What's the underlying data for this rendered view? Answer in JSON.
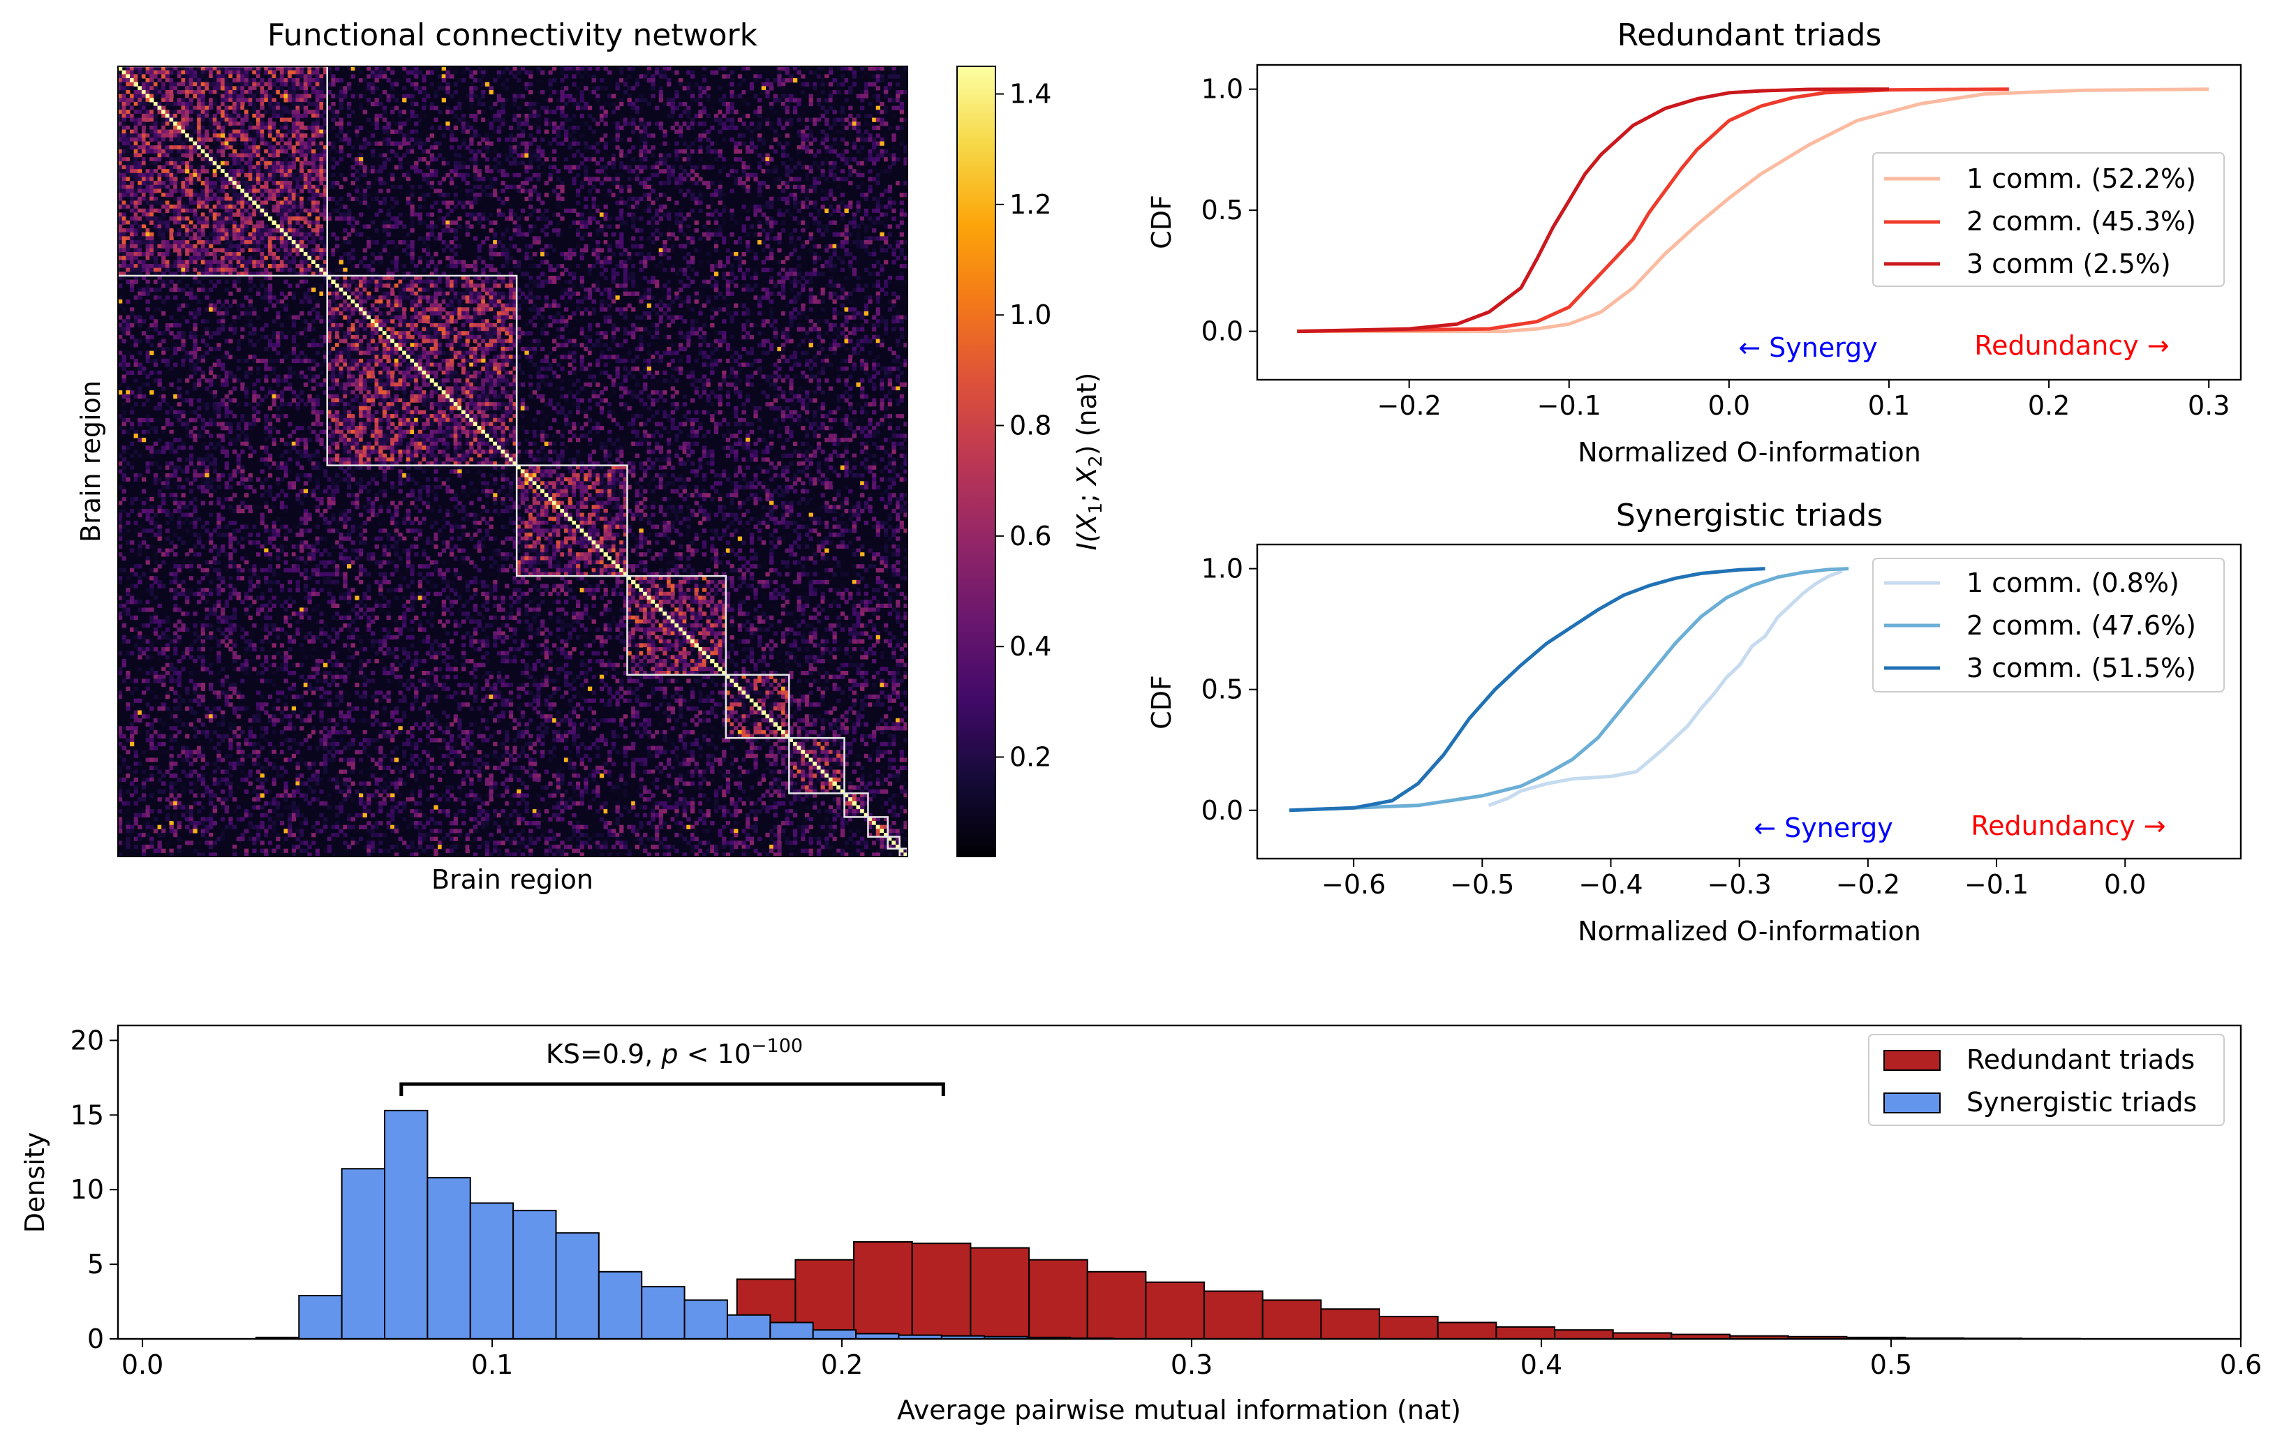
{
  "chart_data": [
    {
      "type": "heatmap",
      "title": "Functional connectivity network",
      "xlabel": "Brain region",
      "ylabel": "Brain region",
      "colorbar": {
        "label_prefix": "I(",
        "label_sub1": "X",
        "label_sub1_index": "1",
        "label_sep": "; ",
        "label_sub2": "X",
        "label_sub2_index": "2",
        "label_suffix": ") (nat)",
        "ticks": [
          0.2,
          0.4,
          0.6,
          0.8,
          1.0,
          1.2,
          1.4
        ],
        "tick_labels": [
          "0.2",
          "0.4",
          "0.6",
          "0.8",
          "1.0",
          "1.2",
          "1.4"
        ],
        "range": [
          0.02,
          1.45
        ],
        "colormap": "inferno"
      },
      "n_regions": 200,
      "communities": [
        53,
        48,
        28,
        25,
        16,
        14,
        6,
        5,
        3,
        2
      ],
      "grid": false
    },
    {
      "type": "line",
      "title": "Redundant triads",
      "xlabel": "Normalized O-information",
      "ylabel": "CDF",
      "xlim": [
        -0.295,
        0.32
      ],
      "ylim": [
        -0.2,
        1.1
      ],
      "xticks": [
        -0.2,
        -0.1,
        0.0,
        0.1,
        0.2,
        0.3
      ],
      "xtick_labels": [
        "−0.2",
        "−0.1",
        "0.0",
        "0.1",
        "0.2",
        "0.3"
      ],
      "yticks": [
        0.0,
        0.5,
        1.0
      ],
      "ytick_labels": [
        "0.0",
        "0.5",
        "1.0"
      ],
      "legend_position": "center-right",
      "series": [
        {
          "name": "1 comm. (52.2%)",
          "color": "#fcbba1",
          "x": [
            -0.27,
            -0.14,
            -0.12,
            -0.1,
            -0.08,
            -0.06,
            -0.04,
            -0.02,
            0.0,
            0.02,
            0.05,
            0.08,
            0.12,
            0.16,
            0.22,
            0.3
          ],
          "y": [
            0.0,
            0.0,
            0.01,
            0.03,
            0.08,
            0.18,
            0.32,
            0.44,
            0.55,
            0.65,
            0.77,
            0.87,
            0.94,
            0.98,
            0.995,
            1.0
          ]
        },
        {
          "name": "2 comm. (45.3%)",
          "color": "#ef3b2c",
          "x": [
            -0.27,
            -0.15,
            -0.12,
            -0.1,
            -0.08,
            -0.06,
            -0.05,
            -0.04,
            -0.03,
            -0.02,
            -0.01,
            0.0,
            0.02,
            0.04,
            0.06,
            0.1,
            0.175
          ],
          "y": [
            0.0,
            0.01,
            0.04,
            0.1,
            0.24,
            0.38,
            0.49,
            0.58,
            0.67,
            0.75,
            0.81,
            0.87,
            0.93,
            0.965,
            0.985,
            0.997,
            1.0
          ]
        },
        {
          "name": "3 comm (2.5%)",
          "color": "#cb181d",
          "x": [
            -0.27,
            -0.2,
            -0.17,
            -0.15,
            -0.13,
            -0.12,
            -0.11,
            -0.1,
            -0.09,
            -0.08,
            -0.06,
            -0.04,
            -0.02,
            0.0,
            0.02,
            0.05,
            0.1
          ],
          "y": [
            0.0,
            0.01,
            0.03,
            0.08,
            0.18,
            0.3,
            0.43,
            0.54,
            0.65,
            0.73,
            0.85,
            0.92,
            0.96,
            0.985,
            0.993,
            0.999,
            1.0
          ]
        }
      ],
      "annotations": [
        {
          "text": "← Synergy",
          "color": "#0000ff"
        },
        {
          "text": "Redundancy →",
          "color": "#ff0000"
        }
      ]
    },
    {
      "type": "line",
      "title": "Synergistic triads",
      "xlabel": "Normalized O-information",
      "ylabel": "CDF",
      "xlim": [
        -0.675,
        0.09
      ],
      "ylim": [
        -0.2,
        1.1
      ],
      "xticks": [
        -0.6,
        -0.5,
        -0.4,
        -0.3,
        -0.2,
        -0.1,
        0.0
      ],
      "xtick_labels": [
        "−0.6",
        "−0.5",
        "−0.4",
        "−0.3",
        "−0.2",
        "−0.1",
        "0.0"
      ],
      "yticks": [
        0.0,
        0.5,
        1.0
      ],
      "ytick_labels": [
        "0.0",
        "0.5",
        "1.0"
      ],
      "legend_position": "upper-right",
      "series": [
        {
          "name": "1 comm. (0.8%)",
          "color": "#c6dbef",
          "x": [
            -0.495,
            -0.48,
            -0.47,
            -0.45,
            -0.43,
            -0.4,
            -0.38,
            -0.36,
            -0.35,
            -0.34,
            -0.33,
            -0.32,
            -0.31,
            -0.3,
            -0.29,
            -0.28,
            -0.27,
            -0.26,
            -0.25,
            -0.24,
            -0.23,
            -0.22
          ],
          "y": [
            0.02,
            0.05,
            0.08,
            0.11,
            0.13,
            0.14,
            0.16,
            0.25,
            0.3,
            0.35,
            0.42,
            0.48,
            0.55,
            0.6,
            0.68,
            0.72,
            0.8,
            0.85,
            0.9,
            0.94,
            0.97,
            0.99
          ]
        },
        {
          "name": "2 comm. (47.6%)",
          "color": "#6baed6",
          "x": [
            -0.65,
            -0.55,
            -0.5,
            -0.47,
            -0.45,
            -0.43,
            -0.41,
            -0.39,
            -0.37,
            -0.35,
            -0.33,
            -0.31,
            -0.29,
            -0.27,
            -0.25,
            -0.23,
            -0.215
          ],
          "y": [
            0.0,
            0.02,
            0.06,
            0.1,
            0.15,
            0.21,
            0.3,
            0.43,
            0.56,
            0.69,
            0.8,
            0.88,
            0.93,
            0.965,
            0.985,
            0.997,
            1.0
          ]
        },
        {
          "name": "3 comm. (51.5%)",
          "color": "#2171b5",
          "x": [
            -0.65,
            -0.6,
            -0.57,
            -0.55,
            -0.53,
            -0.51,
            -0.49,
            -0.47,
            -0.45,
            -0.43,
            -0.41,
            -0.39,
            -0.37,
            -0.35,
            -0.33,
            -0.3,
            -0.28
          ],
          "y": [
            0.0,
            0.01,
            0.04,
            0.11,
            0.23,
            0.38,
            0.5,
            0.6,
            0.69,
            0.76,
            0.83,
            0.89,
            0.93,
            0.96,
            0.98,
            0.995,
            1.0
          ]
        }
      ],
      "annotations": [
        {
          "text": "← Synergy",
          "color": "#0000ff"
        },
        {
          "text": "Redundancy →",
          "color": "#ff0000"
        }
      ]
    },
    {
      "type": "bar",
      "title": "",
      "xlabel": "Average pairwise mutual information (nat)",
      "ylabel": "Density",
      "xlim": [
        -0.007,
        0.6
      ],
      "ylim": [
        0,
        21
      ],
      "xticks": [
        0.0,
        0.1,
        0.2,
        0.3,
        0.4,
        0.5,
        0.6
      ],
      "xtick_labels": [
        "0.0",
        "0.1",
        "0.2",
        "0.3",
        "0.4",
        "0.5",
        "0.6"
      ],
      "yticks": [
        0,
        5,
        10,
        15,
        20
      ],
      "ytick_labels": [
        "0",
        "5",
        "10",
        "15",
        "20"
      ],
      "legend_position": "upper-right",
      "series": [
        {
          "name": "Redundant triads",
          "color": "#b22222",
          "bin_start": 0.17,
          "bin_width": 0.0167,
          "values": [
            4.0,
            5.3,
            6.5,
            6.4,
            6.1,
            5.3,
            4.5,
            3.8,
            3.2,
            2.6,
            2.0,
            1.5,
            1.1,
            0.8,
            0.6,
            0.4,
            0.3,
            0.2,
            0.15,
            0.1,
            0.06,
            0.04,
            0.02
          ]
        },
        {
          "name": "Synergistic triads",
          "color": "#6495ed",
          "bin_start": 0.0325,
          "bin_width": 0.01225,
          "values": [
            0.1,
            2.9,
            11.4,
            15.3,
            10.8,
            9.1,
            8.6,
            7.1,
            4.5,
            3.5,
            2.6,
            1.6,
            1.1,
            0.6,
            0.35,
            0.25,
            0.2,
            0.15,
            0.1,
            0.05
          ]
        }
      ],
      "annotation": {
        "prefix": "KS=0.9, ",
        "p": "p",
        "lt": " < 10",
        "exponent": "−100",
        "bracket_x": [
          0.074,
          0.229
        ]
      }
    }
  ]
}
